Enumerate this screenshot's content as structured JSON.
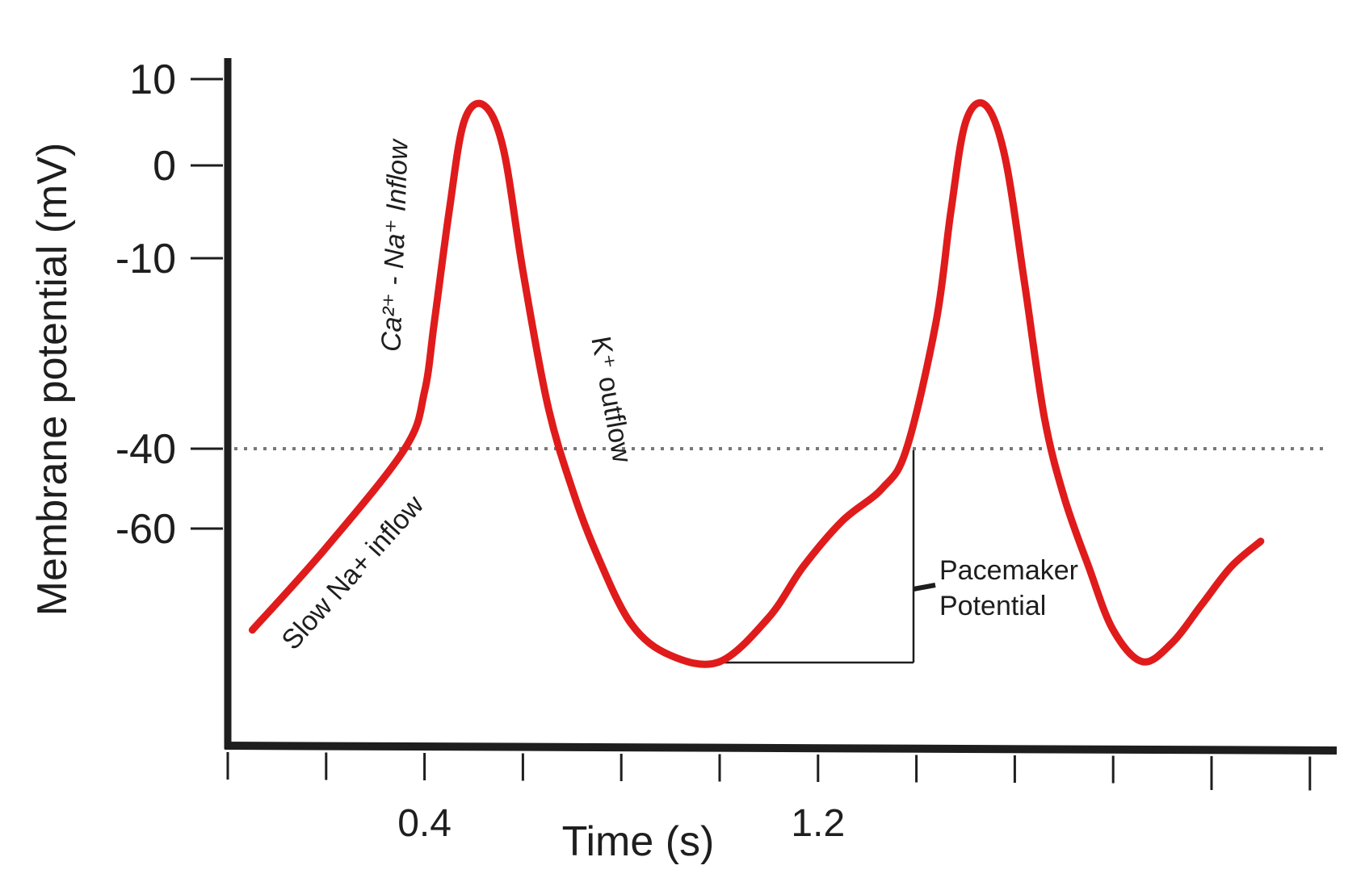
{
  "colors": {
    "trace": "#e01b1b",
    "axis": "#1e1e1e",
    "threshold": "#777777"
  },
  "chart_data": {
    "type": "line",
    "title": "",
    "xlabel": "Time (s)",
    "ylabel": "Membrane potential (mV)",
    "x_ticks": [
      0,
      0.2,
      0.4,
      0.6,
      0.8,
      1.0,
      1.2,
      1.4,
      1.6,
      1.8,
      2.0,
      2.2
    ],
    "x_tick_labels": [
      {
        "value": 0.4,
        "label": "0.4"
      },
      {
        "value": 1.2,
        "label": "1.2"
      }
    ],
    "y_ticks": [
      {
        "value": 10,
        "label": "10"
      },
      {
        "value": 0,
        "label": "0"
      },
      {
        "value": -10,
        "label": "-10"
      },
      {
        "value": -40,
        "label": "-40"
      },
      {
        "value": -60,
        "label": "-60"
      }
    ],
    "threshold": -40,
    "series": [
      {
        "values": [
          [
            0.05,
            -76
          ],
          [
            0.2,
            -63
          ],
          [
            0.36,
            -40
          ],
          [
            0.4,
            -31
          ],
          [
            0.42,
            -20
          ],
          [
            0.45,
            -5
          ],
          [
            0.48,
            5
          ],
          [
            0.52,
            7
          ],
          [
            0.56,
            2
          ],
          [
            0.6,
            -12
          ],
          [
            0.65,
            -33
          ],
          [
            0.7,
            -50
          ],
          [
            0.75,
            -64
          ],
          [
            0.82,
            -75
          ],
          [
            0.9,
            -80
          ],
          [
            1.0,
            -81
          ],
          [
            1.1,
            -74
          ],
          [
            1.17,
            -66
          ],
          [
            1.25,
            -58
          ],
          [
            1.33,
            -50
          ],
          [
            1.38,
            -40
          ],
          [
            1.44,
            -20
          ],
          [
            1.47,
            -5
          ],
          [
            1.5,
            5
          ],
          [
            1.54,
            7
          ],
          [
            1.58,
            1
          ],
          [
            1.62,
            -14
          ],
          [
            1.66,
            -35
          ],
          [
            1.7,
            -52
          ],
          [
            1.75,
            -66
          ],
          [
            1.8,
            -76
          ],
          [
            1.86,
            -81
          ],
          [
            1.92,
            -78
          ],
          [
            1.98,
            -72
          ],
          [
            2.04,
            -66
          ],
          [
            2.1,
            -62
          ]
        ]
      }
    ],
    "annotations": [
      {
        "text": "Slow Na+ inflow"
      },
      {
        "text": "Ca²⁺ - Na⁺ Inflow"
      },
      {
        "text": "K⁺ outflow"
      },
      {
        "text": "Pacemaker"
      },
      {
        "text": "Potential"
      }
    ]
  }
}
